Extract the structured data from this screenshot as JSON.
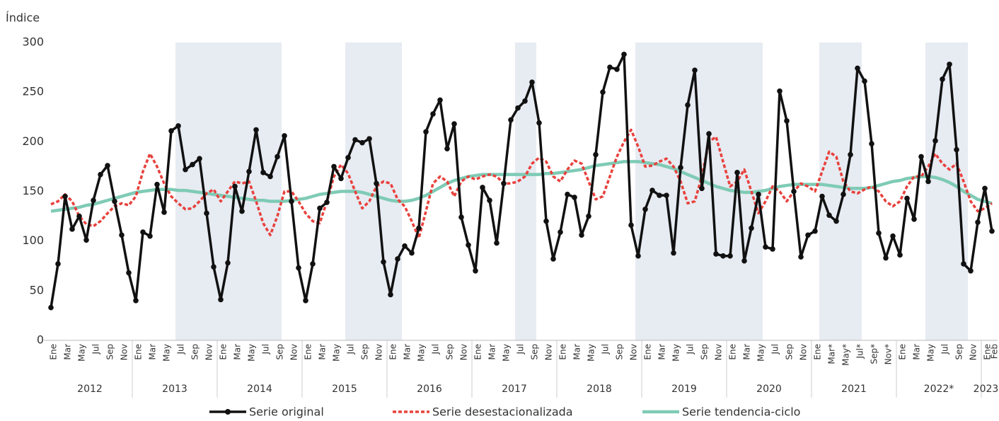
{
  "chart_data": {
    "type": "line",
    "y_label": "Índice",
    "categories": [
      "Ene",
      null,
      "Mar",
      null,
      "May",
      null,
      "Jul",
      null,
      "Sep",
      null,
      "Nov",
      null,
      "Ene",
      null,
      "Mar",
      null,
      "May",
      null,
      "Jul",
      null,
      "Sep",
      null,
      "Nov",
      null,
      "Ene",
      null,
      "Mar",
      null,
      "May",
      null,
      "Jul",
      null,
      "Sep",
      null,
      "Nov",
      null,
      "Ene",
      null,
      "Mar",
      null,
      "May",
      null,
      "Jul",
      null,
      "Sep",
      null,
      "Nov",
      null,
      "Ene",
      null,
      "Mar",
      null,
      "May",
      null,
      "Jul",
      null,
      "Sep",
      null,
      "Nov",
      null,
      "Ene",
      null,
      "Mar",
      null,
      "May",
      null,
      "Jul",
      null,
      "Sep",
      null,
      "Nov",
      null,
      "Ene",
      null,
      "Mar",
      null,
      "May",
      null,
      "Jul",
      null,
      "Sep",
      null,
      "Nov",
      null,
      "Ene",
      null,
      "Mar",
      null,
      "May",
      null,
      "Jul",
      null,
      "Sep",
      null,
      "Nov",
      null,
      "Ene",
      null,
      "Mar",
      null,
      "May",
      null,
      "Jul",
      null,
      "Sep",
      null,
      "Nov",
      null,
      "Ene",
      null,
      "Mar*",
      null,
      "May*",
      null,
      "Jul*",
      null,
      "Sep*",
      null,
      "Nov*",
      null,
      "Ene",
      null,
      "Mar",
      null,
      "May",
      null,
      "Jul",
      null,
      "Sep",
      null,
      "Nov",
      null,
      "Ene",
      "Feb"
    ],
    "x_groups": [
      "2012",
      "2013",
      "2014",
      "2015",
      "2016",
      "2017",
      "2018",
      "2019",
      "2020",
      "2021",
      "2022*",
      "2023*"
    ],
    "series": [
      {
        "name": "Serie original",
        "color": "#111111",
        "style": "marker",
        "values": [
          33,
          77,
          145,
          112,
          125,
          101,
          141,
          167,
          176,
          140,
          106,
          68,
          40,
          109,
          105,
          157,
          129,
          211,
          216,
          172,
          177,
          183,
          128,
          74,
          41,
          78,
          155,
          130,
          170,
          212,
          169,
          165,
          185,
          206,
          140,
          73,
          40,
          77,
          133,
          139,
          175,
          163,
          184,
          202,
          199,
          203,
          158,
          79,
          46,
          82,
          95,
          88,
          113,
          210,
          228,
          242,
          193,
          218,
          124,
          96,
          70,
          154,
          141,
          98,
          158,
          222,
          234,
          241,
          260,
          219,
          120,
          82,
          109,
          147,
          144,
          106,
          125,
          187,
          250,
          275,
          273,
          288,
          116,
          85,
          132,
          151,
          146,
          146,
          88,
          174,
          237,
          272,
          153,
          208,
          87,
          85,
          85,
          169,
          80,
          113,
          147,
          94,
          92,
          251,
          221,
          150,
          84,
          106,
          110,
          145,
          126,
          120,
          147,
          187,
          274,
          261,
          198,
          108,
          83,
          105,
          86,
          143,
          122,
          185,
          160,
          201,
          263,
          278,
          192,
          77,
          70,
          119,
          153,
          110
        ]
      },
      {
        "name": "Serie desestacionalizada",
        "color": "#e8413c",
        "style": "dotted",
        "values": [
          137,
          140,
          147,
          140,
          125,
          117,
          115,
          120,
          128,
          135,
          138,
          136,
          145,
          170,
          188,
          175,
          158,
          145,
          138,
          132,
          133,
          140,
          148,
          152,
          140,
          150,
          160,
          158,
          160,
          140,
          118,
          106,
          125,
          150,
          150,
          140,
          128,
          120,
          118,
          140,
          165,
          177,
          168,
          150,
          133,
          140,
          155,
          160,
          158,
          142,
          135,
          120,
          103,
          130,
          158,
          165,
          160,
          145,
          160,
          165,
          162,
          165,
          167,
          165,
          158,
          158,
          160,
          165,
          178,
          184,
          180,
          165,
          160,
          172,
          181,
          178,
          160,
          142,
          145,
          165,
          185,
          200,
          212,
          195,
          175,
          176,
          180,
          183,
          175,
          160,
          138,
          140,
          165,
          200,
          205,
          180,
          155,
          160,
          172,
          150,
          128,
          140,
          155,
          150,
          140,
          150,
          158,
          155,
          150,
          170,
          190,
          185,
          160,
          150,
          148,
          152,
          155,
          150,
          140,
          135,
          140,
          155,
          165,
          165,
          175,
          188,
          178,
          172,
          178,
          160,
          140,
          130,
          133,
          138
        ]
      },
      {
        "name": "Serie tendencia-ciclo",
        "color": "#7fcbb5",
        "style": "thick",
        "values": [
          130,
          131,
          132,
          133,
          134,
          136,
          137,
          139,
          141,
          143,
          145,
          147,
          149,
          150,
          151,
          152,
          152,
          152,
          151,
          151,
          150,
          149,
          148,
          147,
          146,
          145,
          144,
          143,
          142,
          141,
          141,
          140,
          140,
          140,
          141,
          142,
          143,
          145,
          147,
          148,
          149,
          150,
          150,
          150,
          149,
          147,
          145,
          143,
          141,
          140,
          140,
          141,
          143,
          146,
          150,
          154,
          158,
          161,
          163,
          165,
          166,
          167,
          167,
          167,
          167,
          167,
          167,
          167,
          167,
          167,
          168,
          168,
          169,
          170,
          171,
          172,
          174,
          176,
          177,
          178,
          179,
          180,
          180,
          180,
          179,
          178,
          177,
          175,
          173,
          170,
          167,
          164,
          161,
          158,
          155,
          153,
          151,
          150,
          149,
          149,
          150,
          151,
          153,
          155,
          156,
          157,
          157,
          157,
          157,
          157,
          156,
          155,
          154,
          153,
          153,
          153,
          154,
          156,
          158,
          160,
          161,
          163,
          164,
          165,
          165,
          164,
          162,
          159,
          155,
          150,
          146,
          142,
          140,
          138
        ]
      }
    ],
    "ylim": [
      0,
      300
    ],
    "yticks": [
      0,
      50,
      100,
      150,
      200,
      250,
      300
    ],
    "grid": false,
    "legend": "bottom"
  }
}
